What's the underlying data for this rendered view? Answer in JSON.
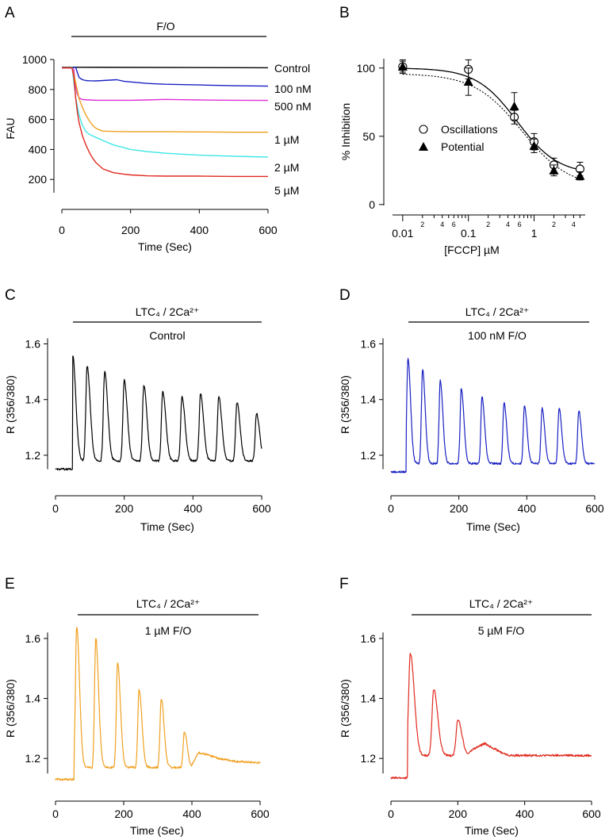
{
  "chart_data": [
    {
      "panel": "A",
      "type": "line",
      "stim_label": "F/O",
      "ylabel": "FAU",
      "xlabel": "Time (Sec)",
      "xlim": [
        0,
        600
      ],
      "ylim": [
        0,
        1000
      ],
      "xticks": [
        0,
        200,
        400,
        600
      ],
      "yticks": [
        200,
        400,
        600,
        800,
        1000
      ],
      "series": [
        {
          "name": "Control",
          "color": "#000000",
          "x": [
            0,
            35,
            600
          ],
          "y": [
            948,
            948,
            945
          ]
        },
        {
          "name": "100 nM",
          "color": "#1a22c2",
          "x": [
            0,
            35,
            40,
            50,
            60,
            70,
            80,
            100,
            120,
            160,
            180,
            200,
            250,
            300,
            400,
            500,
            600
          ],
          "y": [
            945,
            945,
            950,
            880,
            865,
            860,
            858,
            857,
            860,
            865,
            855,
            850,
            840,
            835,
            830,
            825,
            822
          ]
        },
        {
          "name": "500 nM",
          "color": "#e02fd8",
          "x": [
            0,
            30,
            35,
            40,
            45,
            50,
            55,
            60,
            80,
            100,
            150,
            200,
            250,
            300,
            350,
            400,
            500,
            600
          ],
          "y": [
            943,
            943,
            930,
            820,
            770,
            745,
            738,
            733,
            730,
            728,
            728,
            728,
            730,
            734,
            732,
            730,
            728,
            727
          ]
        },
        {
          "name": "1 µM",
          "color": "#f0a020",
          "x": [
            0,
            30,
            40,
            50,
            60,
            70,
            80,
            90,
            100,
            110,
            120,
            150,
            200,
            300,
            400,
            500,
            600
          ],
          "y": [
            945,
            945,
            850,
            740,
            680,
            630,
            590,
            560,
            540,
            530,
            522,
            520,
            518,
            518,
            517,
            515,
            515
          ]
        },
        {
          "name": "2 µM",
          "color": "#3ee6e6",
          "x": [
            0,
            30,
            40,
            50,
            60,
            70,
            80,
            90,
            100,
            120,
            150,
            200,
            250,
            300,
            350,
            400,
            450,
            500,
            550,
            600
          ],
          "y": [
            945,
            945,
            750,
            630,
            560,
            520,
            500,
            490,
            480,
            460,
            430,
            400,
            385,
            375,
            368,
            362,
            358,
            355,
            352,
            350
          ]
        },
        {
          "name": "5 µM",
          "color": "#e02a1e",
          "x": [
            0,
            25,
            30,
            35,
            40,
            45,
            50,
            60,
            70,
            80,
            90,
            100,
            120,
            150,
            180,
            200,
            250,
            300,
            400,
            500,
            600
          ],
          "y": [
            945,
            945,
            940,
            880,
            750,
            650,
            580,
            490,
            430,
            380,
            340,
            310,
            270,
            245,
            235,
            230,
            224,
            222,
            222,
            220,
            220
          ]
        }
      ]
    },
    {
      "panel": "B",
      "type": "scatter",
      "xlabel": "[FCCP] µM",
      "ylabel": "% Inhibition",
      "xscale": "log",
      "xlim": [
        0.007,
        6
      ],
      "ylim": [
        -3,
        108
      ],
      "xticks_major": [
        {
          "v": 0.01,
          "label": "0.01"
        },
        {
          "v": 0.1,
          "label": "0.1"
        },
        {
          "v": 1,
          "label": "1"
        }
      ],
      "xticks_minor": [
        {
          "v": 0.02,
          "label": "2"
        },
        {
          "v": 0.04,
          "label": "4"
        },
        {
          "v": 0.06,
          "label": "6"
        },
        {
          "v": 0.2,
          "label": "2"
        },
        {
          "v": 0.4,
          "label": "4"
        },
        {
          "v": 0.6,
          "label": "6"
        },
        {
          "v": 2,
          "label": "2"
        },
        {
          "v": 4,
          "label": "4"
        }
      ],
      "xticks_minor_unlabeled": [
        0.03,
        0.05,
        0.07,
        0.08,
        0.09,
        0.3,
        0.5,
        0.7,
        0.8,
        0.9,
        3,
        5
      ],
      "yticks": [
        0,
        50,
        100
      ],
      "legend": [
        "Oscillations",
        "Potential"
      ],
      "series": [
        {
          "name": "Oscillations",
          "marker": "open-circle",
          "x": [
            0.01,
            0.1,
            0.5,
            1,
            2,
            5
          ],
          "y": [
            101,
            99,
            64,
            46,
            29,
            26
          ],
          "err": [
            5,
            7,
            5,
            6,
            5,
            5
          ],
          "fit": {
            "style": "solid",
            "top": 100,
            "bottom": 22,
            "ic50": 0.55,
            "hill": 1.4
          }
        },
        {
          "name": "Potential",
          "marker": "filled-triangle",
          "x": [
            0.01,
            0.1,
            0.5,
            1,
            2,
            5
          ],
          "y": [
            101,
            90,
            72,
            43,
            25,
            21
          ],
          "err": [
            4,
            10,
            10,
            5,
            4,
            3
          ],
          "fit": {
            "style": "dotted",
            "top": 96,
            "bottom": 12,
            "ic50": 0.65,
            "hill": 1.2
          }
        }
      ]
    },
    {
      "panel": "C",
      "type": "line",
      "color": "#000000",
      "stim_label": "LTC₄ / 2Ca²⁺",
      "cond_label": "Control",
      "xlabel": "Time (Sec)",
      "ylabel": "R (356/380)",
      "xlim": [
        0,
        600
      ],
      "ylim": [
        1.1,
        1.65
      ],
      "xticks": [
        0,
        200,
        400,
        600
      ],
      "yticks": [
        1.2,
        1.4,
        1.6
      ],
      "baseline": 1.15,
      "start": 50,
      "trough": 1.18,
      "width": 30,
      "peaks_t": [
        50,
        92,
        143,
        200,
        257,
        312,
        368,
        422,
        475,
        528,
        585
      ],
      "peaks_v": [
        1.56,
        1.52,
        1.5,
        1.47,
        1.45,
        1.43,
        1.41,
        1.42,
        1.41,
        1.39,
        1.35
      ],
      "end_t": 600,
      "end_v": 1.2
    },
    {
      "panel": "D",
      "type": "line",
      "color": "#1a22c2",
      "stim_label": "LTC₄ / 2Ca²⁺",
      "cond_label": "100 nM F/O",
      "xlabel": "Time (Sec)",
      "ylabel": "R (356/380)",
      "xlim": [
        0,
        600
      ],
      "ylim": [
        1.1,
        1.65
      ],
      "xticks": [
        0,
        200,
        400,
        600
      ],
      "yticks": [
        1.2,
        1.4,
        1.6
      ],
      "baseline": 1.14,
      "start": 45,
      "trough": 1.17,
      "width": 26,
      "peaks_t": [
        50,
        93,
        145,
        207,
        268,
        333,
        393,
        445,
        495,
        553
      ],
      "peaks_v": [
        1.55,
        1.51,
        1.47,
        1.44,
        1.41,
        1.39,
        1.38,
        1.37,
        1.37,
        1.36
      ],
      "end_t": 600,
      "end_v": 1.18
    },
    {
      "panel": "E",
      "type": "line",
      "color": "#f0a020",
      "stim_label": "LTC₄ / 2Ca²⁺",
      "cond_label": "1 µM F/O",
      "xlabel": "Time (Sec)",
      "ylabel": "R (356/380)",
      "xlim": [
        0,
        600
      ],
      "ylim": [
        1.1,
        1.65
      ],
      "xticks": [
        0,
        200,
        400,
        600
      ],
      "yticks": [
        1.2,
        1.4,
        1.6
      ],
      "baseline": 1.13,
      "start": 55,
      "trough": 1.17,
      "width": 28,
      "peaks_t": [
        62,
        118,
        182,
        245,
        310,
        378
      ],
      "peaks_v": [
        1.64,
        1.6,
        1.52,
        1.43,
        1.4,
        1.29
      ],
      "tail": [
        [
          420,
          1.22
        ],
        [
          480,
          1.2
        ],
        [
          530,
          1.19
        ],
        [
          600,
          1.185
        ]
      ]
    },
    {
      "panel": "F",
      "type": "line",
      "color": "#e02a1e",
      "stim_label": "LTC₄ / 2Ca²⁺",
      "cond_label": "5 µM F/O",
      "xlabel": "Time (Sec)",
      "ylabel": "R (356/380)",
      "xlim": [
        0,
        600
      ],
      "ylim": [
        1.1,
        1.65
      ],
      "xticks": [
        0,
        200,
        400,
        600
      ],
      "yticks": [
        1.2,
        1.4,
        1.6
      ],
      "baseline": 1.135,
      "start": 50,
      "trough": 1.21,
      "width": 40,
      "peaks_t": [
        58,
        128,
        200
      ],
      "peaks_v": [
        1.55,
        1.43,
        1.33
      ],
      "tail": [
        [
          245,
          1.23
        ],
        [
          280,
          1.25
        ],
        [
          330,
          1.22
        ],
        [
          400,
          1.19
        ],
        [
          500,
          1.18
        ],
        [
          600,
          1.18
        ]
      ]
    }
  ]
}
